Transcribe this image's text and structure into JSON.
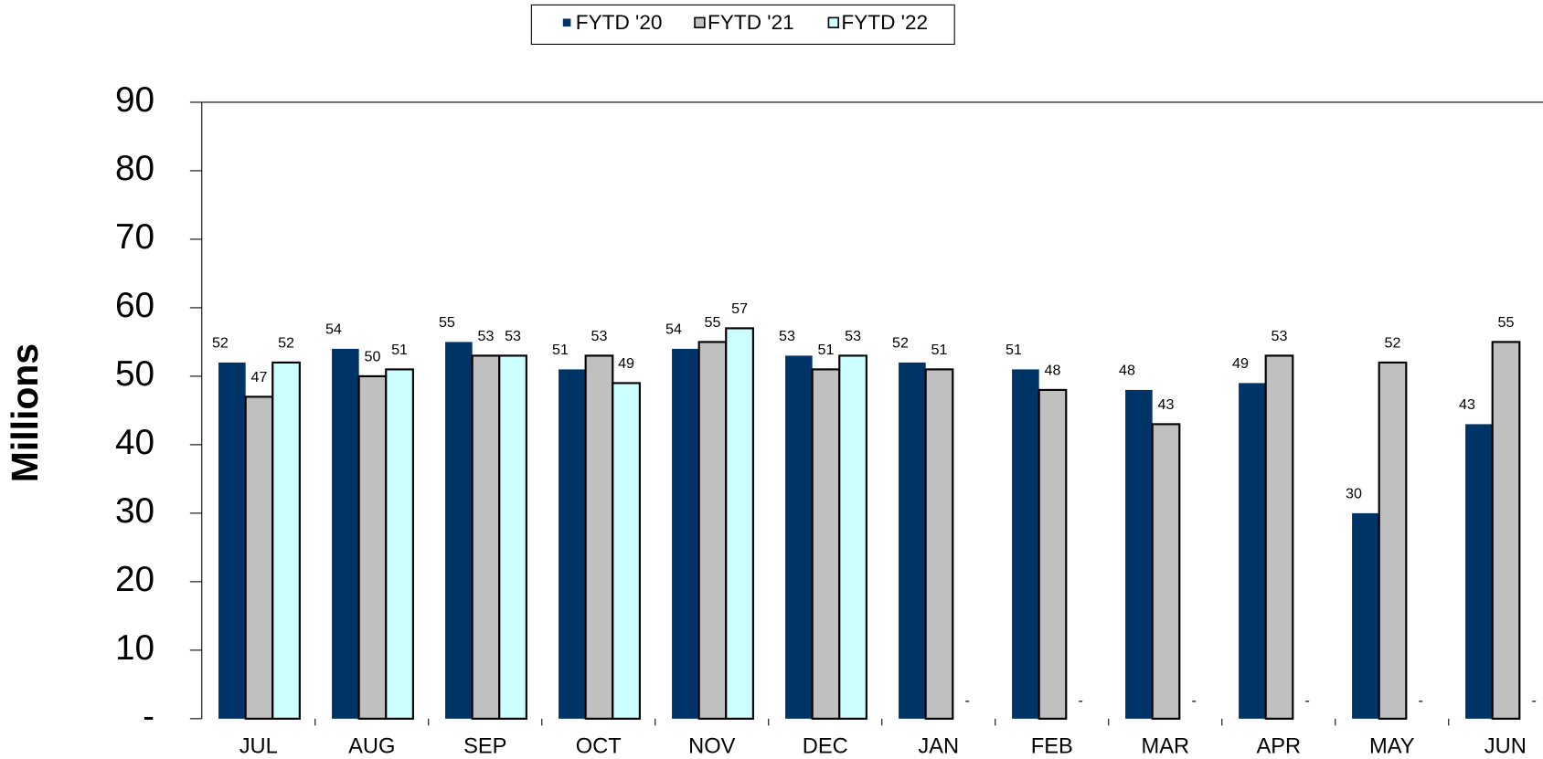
{
  "chart_data": {
    "type": "bar",
    "y_label": "Millions",
    "categories": [
      "JUL",
      "AUG",
      "SEP",
      "OCT",
      "NOV",
      "DEC",
      "JAN",
      "FEB",
      "MAR",
      "APR",
      "MAY",
      "JUN"
    ],
    "series": [
      {
        "name": "FYTD '20",
        "color": "#003366",
        "values": [
          52,
          54,
          55,
          51,
          54,
          53,
          52,
          51,
          48,
          49,
          30,
          43
        ]
      },
      {
        "name": "FYTD '21",
        "color": "#c0c0c0",
        "values": [
          47,
          50,
          53,
          53,
          55,
          51,
          51,
          48,
          43,
          53,
          52,
          55
        ]
      },
      {
        "name": "FYTD '22",
        "color": "#ccffff",
        "values": [
          52,
          51,
          53,
          49,
          57,
          53,
          0,
          0,
          0,
          0,
          0,
          0
        ],
        "value_labels": [
          "52",
          "51",
          "53",
          "49",
          "57",
          "53",
          "-",
          "-",
          "-",
          "-",
          "-",
          "-"
        ]
      }
    ],
    "ylim": [
      0,
      90
    ],
    "yticks": [
      {
        "value": 0,
        "label": "-"
      },
      10,
      20,
      30,
      40,
      50,
      60,
      70,
      80,
      90
    ],
    "legend": "top"
  }
}
